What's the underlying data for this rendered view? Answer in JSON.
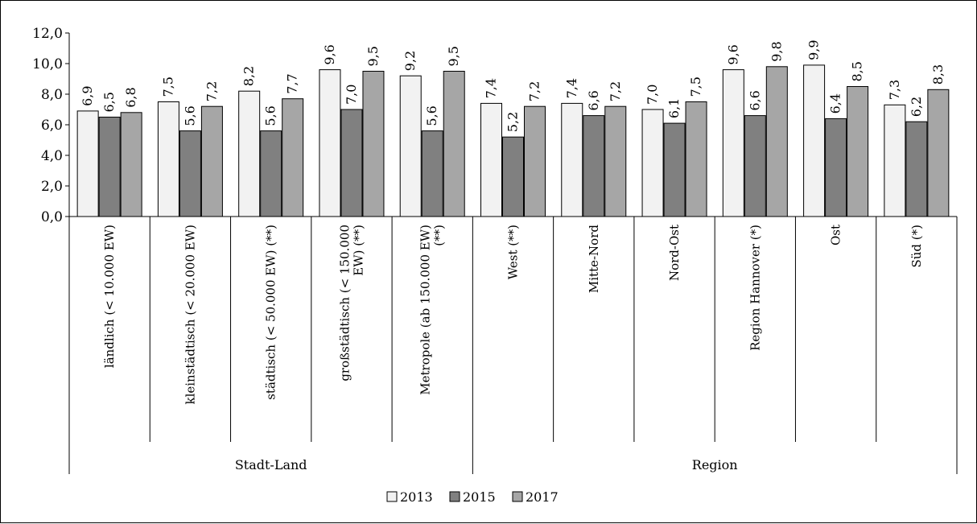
{
  "chart_data": {
    "type": "bar",
    "title": "",
    "xlabel": "",
    "ylabel": "",
    "ylim": [
      0,
      12
    ],
    "yticks": [
      "0,0",
      "2,0",
      "4,0",
      "6,0",
      "8,0",
      "10,0",
      "12,0"
    ],
    "categories": [
      [
        "ländlich (< 10.000 EW)"
      ],
      [
        "kleinstädtisch (< 20.000 EW)"
      ],
      [
        "städtisch (< 50.000 EW) (**)"
      ],
      [
        "großstädtisch (< 150.000",
        "EW) (**)"
      ],
      [
        "Metropole (ab 150.000 EW)",
        "(**)"
      ],
      [
        "West (**)"
      ],
      [
        "Mitte-Nord"
      ],
      [
        "Nord-Ost"
      ],
      [
        "Region Hannover (*)"
      ],
      [
        "Ost"
      ],
      [
        "Süd (*)"
      ]
    ],
    "groups": [
      {
        "label": "Stadt-Land",
        "from": 0,
        "to": 4
      },
      {
        "label": "Region",
        "from": 5,
        "to": 10
      }
    ],
    "series": [
      {
        "name": "2013",
        "color": "#f2f2f2",
        "values": [
          6.9,
          7.5,
          8.2,
          9.6,
          9.2,
          7.4,
          7.4,
          7.0,
          9.6,
          9.9,
          7.3
        ],
        "labels": [
          "6,9",
          "7,5",
          "8,2",
          "9,6",
          "9,2",
          "7,4",
          "7,4",
          "7,0",
          "9,6",
          "9,9",
          "7,3"
        ]
      },
      {
        "name": "2015",
        "color": "#808080",
        "values": [
          6.5,
          5.6,
          5.6,
          7.0,
          5.6,
          5.2,
          6.6,
          6.1,
          6.6,
          6.4,
          6.2
        ],
        "labels": [
          "6,5",
          "5,6",
          "5,6",
          "7,0",
          "5,6",
          "5,2",
          "6,6",
          "6,1",
          "6,6",
          "6,4",
          "6,2"
        ]
      },
      {
        "name": "2017",
        "color": "#a6a6a6",
        "values": [
          6.8,
          7.2,
          7.7,
          9.5,
          9.5,
          7.2,
          7.2,
          7.5,
          9.8,
          8.5,
          8.3
        ],
        "labels": [
          "6,8",
          "7,2",
          "7,7",
          "9,5",
          "9,5",
          "7,2",
          "7,2",
          "7,5",
          "9,8",
          "8,5",
          "8,3"
        ]
      }
    ],
    "legend": "bottom",
    "grid": false
  }
}
